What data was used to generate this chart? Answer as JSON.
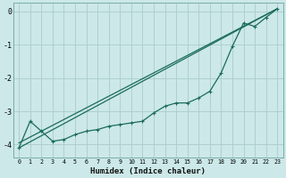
{
  "background_color": "#cce8e8",
  "grid_color": "#aacccc",
  "line_color": "#1a6b5a",
  "xlabel": "Humidex (Indice chaleur)",
  "ylim": [
    -4.4,
    0.25
  ],
  "xlim": [
    -0.5,
    23.5
  ],
  "yticks": [
    0,
    -1,
    -2,
    -3,
    -4
  ],
  "xticks": [
    0,
    1,
    2,
    3,
    4,
    5,
    6,
    7,
    8,
    9,
    10,
    11,
    12,
    13,
    14,
    15,
    16,
    17,
    18,
    19,
    20,
    21,
    22,
    23
  ],
  "straight_line1": {
    "x": [
      0,
      23
    ],
    "y": [
      -4.1,
      0.08
    ]
  },
  "straight_line2": {
    "x": [
      0,
      23
    ],
    "y": [
      -3.95,
      0.08
    ]
  },
  "wiggly": {
    "x": [
      0,
      1,
      2,
      3,
      4,
      5,
      6,
      7,
      8,
      9,
      10,
      11,
      12,
      13,
      14,
      15,
      16,
      17,
      18,
      19,
      20,
      21,
      22,
      23
    ],
    "y": [
      -4.1,
      -3.3,
      -3.6,
      -3.9,
      -3.85,
      -3.7,
      -3.6,
      -3.55,
      -3.45,
      -3.4,
      -3.35,
      -3.3,
      -3.05,
      -2.85,
      -2.75,
      -2.75,
      -2.6,
      -2.4,
      -1.85,
      -1.05,
      -0.35,
      -0.45,
      -0.18,
      0.08
    ]
  },
  "figsize": [
    3.2,
    2.0
  ],
  "dpi": 100
}
